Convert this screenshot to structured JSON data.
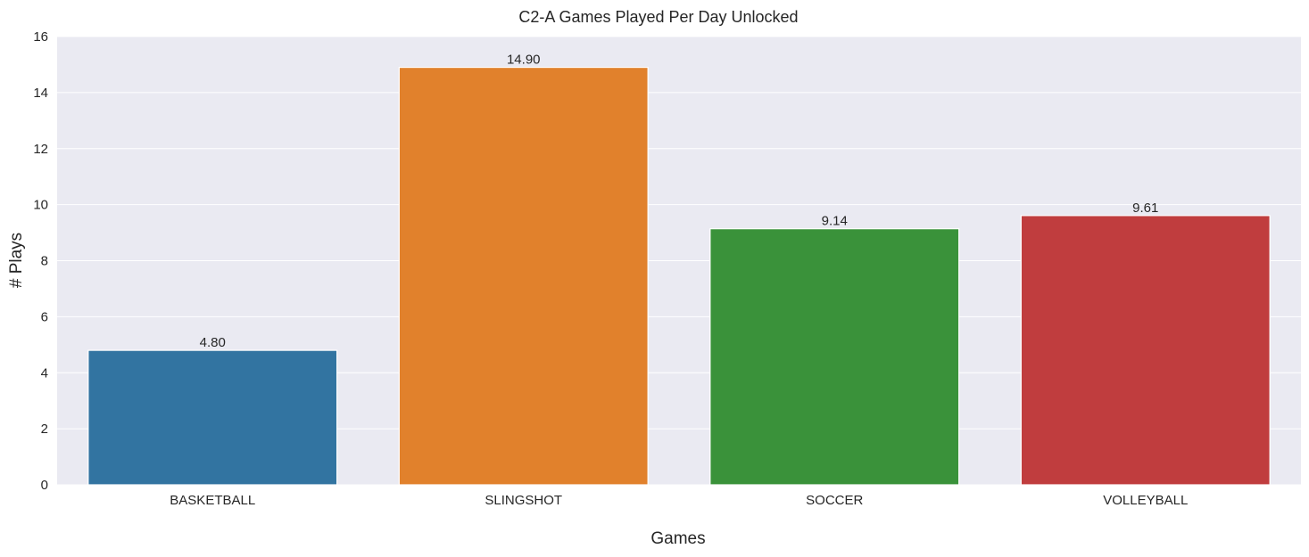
{
  "chart_data": {
    "type": "bar",
    "title": "C2-A Games Played Per Day Unlocked",
    "xlabel": "Games",
    "ylabel": "# Plays",
    "categories": [
      "BASKETBALL",
      "SLINGSHOT",
      "SOCCER",
      "VOLLEYBALL"
    ],
    "values": [
      4.8,
      14.9,
      9.14,
      9.61
    ],
    "value_labels": [
      "4.80",
      "14.90",
      "9.14",
      "9.61"
    ],
    "colors": [
      "#3274a1",
      "#e1812c",
      "#3a923a",
      "#c03d3e"
    ],
    "ylim": [
      0,
      16
    ],
    "yticks": [
      0,
      2,
      4,
      6,
      8,
      10,
      12,
      14,
      16
    ],
    "grid": true,
    "background": "#eaeaf2"
  }
}
